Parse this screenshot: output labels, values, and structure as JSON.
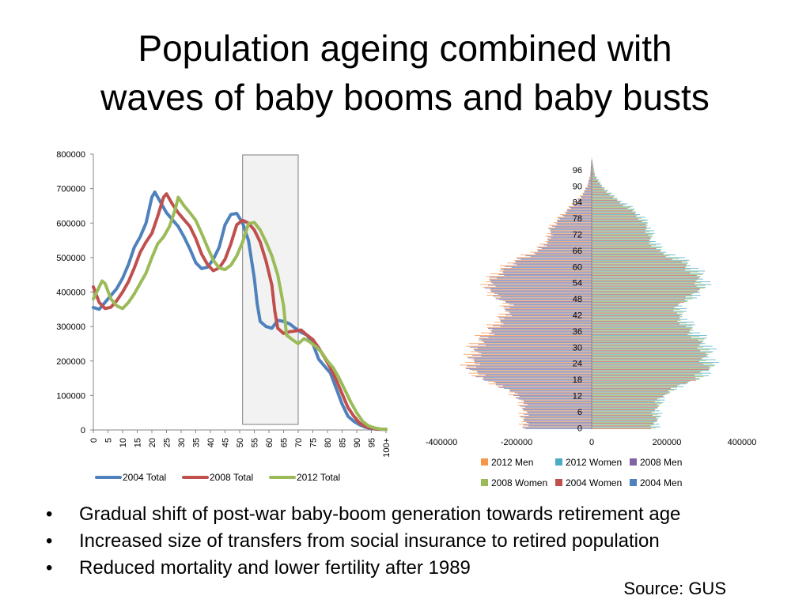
{
  "title": {
    "line1": "Population ageing combined with",
    "line2": "waves of baby booms and baby busts"
  },
  "bullets": [
    "Gradual shift of post-war baby-boom generation towards retirement age",
    "Increased size of transfers from social insurance to retired population",
    "Reduced mortality and lower fertility after 1989"
  ],
  "source": "Source: GUS",
  "chart_data": [
    {
      "type": "line",
      "title": "",
      "xlabel": "",
      "ylabel": "",
      "ylim": [
        0,
        800000
      ],
      "yticks": [
        "0",
        "100000",
        "200000",
        "300000",
        "400000",
        "500000",
        "600000",
        "700000",
        "800000"
      ],
      "xticks": [
        "0",
        "5",
        "10",
        "15",
        "20",
        "25",
        "30",
        "35",
        "40",
        "45",
        "50",
        "55",
        "60",
        "65",
        "70",
        "75",
        "80",
        "85",
        "90",
        "95",
        "100+"
      ],
      "legend": "bottom",
      "highlight_range": [
        51,
        70
      ],
      "series": [
        {
          "name": "2004 Total",
          "color": "#4F81BD",
          "points": [
            [
              0,
              355000
            ],
            [
              2,
              350000
            ],
            [
              4,
              370000
            ],
            [
              6,
              390000
            ],
            [
              8,
              410000
            ],
            [
              10,
              440000
            ],
            [
              12,
              480000
            ],
            [
              14,
              530000
            ],
            [
              16,
              560000
            ],
            [
              18,
              600000
            ],
            [
              20,
              675000
            ],
            [
              21,
              690000
            ],
            [
              23,
              660000
            ],
            [
              25,
              630000
            ],
            [
              27,
              610000
            ],
            [
              29,
              590000
            ],
            [
              31,
              560000
            ],
            [
              33,
              525000
            ],
            [
              35,
              485000
            ],
            [
              37,
              468000
            ],
            [
              39,
              472000
            ],
            [
              41,
              495000
            ],
            [
              43,
              530000
            ],
            [
              45,
              595000
            ],
            [
              47,
              625000
            ],
            [
              49,
              628000
            ],
            [
              51,
              600000
            ],
            [
              53,
              550000
            ],
            [
              55,
              440000
            ],
            [
              56,
              365000
            ],
            [
              57,
              315000
            ],
            [
              59,
              300000
            ],
            [
              61,
              295000
            ],
            [
              63,
              318000
            ],
            [
              65,
              315000
            ],
            [
              67,
              308000
            ],
            [
              69,
              295000
            ],
            [
              71,
              283000
            ],
            [
              73,
              275000
            ],
            [
              75,
              250000
            ],
            [
              77,
              205000
            ],
            [
              79,
              185000
            ],
            [
              81,
              165000
            ],
            [
              83,
              120000
            ],
            [
              85,
              75000
            ],
            [
              87,
              40000
            ],
            [
              89,
              25000
            ],
            [
              91,
              15000
            ],
            [
              93,
              8000
            ],
            [
              95,
              4000
            ],
            [
              97,
              2000
            ],
            [
              100,
              1500
            ]
          ]
        },
        {
          "name": "2008 Total",
          "color": "#C0504D",
          "points": [
            [
              0,
              415000
            ],
            [
              2,
              370000
            ],
            [
              4,
              352000
            ],
            [
              6,
              356000
            ],
            [
              8,
              375000
            ],
            [
              10,
              400000
            ],
            [
              12,
              430000
            ],
            [
              14,
              470000
            ],
            [
              16,
              515000
            ],
            [
              18,
              545000
            ],
            [
              20,
              570000
            ],
            [
              22,
              620000
            ],
            [
              24,
              675000
            ],
            [
              25,
              685000
            ],
            [
              27,
              655000
            ],
            [
              29,
              630000
            ],
            [
              31,
              610000
            ],
            [
              33,
              590000
            ],
            [
              35,
              555000
            ],
            [
              37,
              510000
            ],
            [
              39,
              480000
            ],
            [
              41,
              462000
            ],
            [
              43,
              470000
            ],
            [
              45,
              495000
            ],
            [
              47,
              540000
            ],
            [
              49,
              595000
            ],
            [
              51,
              608000
            ],
            [
              53,
              600000
            ],
            [
              55,
              580000
            ],
            [
              57,
              545000
            ],
            [
              59,
              490000
            ],
            [
              61,
              420000
            ],
            [
              62,
              345000
            ],
            [
              63,
              295000
            ],
            [
              65,
              280000
            ],
            [
              67,
              285000
            ],
            [
              69,
              287000
            ],
            [
              71,
              290000
            ],
            [
              73,
              275000
            ],
            [
              75,
              262000
            ],
            [
              77,
              238000
            ],
            [
              79,
              210000
            ],
            [
              81,
              180000
            ],
            [
              83,
              145000
            ],
            [
              85,
              105000
            ],
            [
              87,
              65000
            ],
            [
              89,
              40000
            ],
            [
              91,
              20000
            ],
            [
              93,
              10000
            ],
            [
              95,
              5000
            ],
            [
              97,
              2500
            ],
            [
              100,
              1500
            ]
          ]
        },
        {
          "name": "2012 Total",
          "color": "#9BBB59",
          "points": [
            [
              0,
              380000
            ],
            [
              2,
              415000
            ],
            [
              3,
              432000
            ],
            [
              4,
              425000
            ],
            [
              6,
              380000
            ],
            [
              8,
              360000
            ],
            [
              10,
              352000
            ],
            [
              12,
              370000
            ],
            [
              14,
              395000
            ],
            [
              16,
              425000
            ],
            [
              18,
              455000
            ],
            [
              20,
              500000
            ],
            [
              22,
              540000
            ],
            [
              24,
              560000
            ],
            [
              26,
              590000
            ],
            [
              28,
              640000
            ],
            [
              29,
              675000
            ],
            [
              31,
              650000
            ],
            [
              33,
              630000
            ],
            [
              35,
              608000
            ],
            [
              37,
              570000
            ],
            [
              39,
              530000
            ],
            [
              41,
              492000
            ],
            [
              43,
              470000
            ],
            [
              45,
              465000
            ],
            [
              47,
              478000
            ],
            [
              49,
              505000
            ],
            [
              51,
              545000
            ],
            [
              53,
              598000
            ],
            [
              55,
              602000
            ],
            [
              57,
              580000
            ],
            [
              59,
              545000
            ],
            [
              61,
              505000
            ],
            [
              63,
              450000
            ],
            [
              65,
              360000
            ],
            [
              66,
              275000
            ],
            [
              68,
              262000
            ],
            [
              70,
              250000
            ],
            [
              72,
              265000
            ],
            [
              74,
              255000
            ],
            [
              76,
              242000
            ],
            [
              78,
              225000
            ],
            [
              80,
              200000
            ],
            [
              82,
              180000
            ],
            [
              84,
              150000
            ],
            [
              86,
              115000
            ],
            [
              88,
              80000
            ],
            [
              90,
              50000
            ],
            [
              92,
              25000
            ],
            [
              94,
              12000
            ],
            [
              96,
              6000
            ],
            [
              98,
              3000
            ],
            [
              100,
              1500
            ]
          ]
        }
      ]
    },
    {
      "type": "bar",
      "orientation": "horizontal",
      "title": "",
      "xlabel": "",
      "ylabel": "",
      "xlim": [
        -400000,
        400000
      ],
      "xticks": [
        "-400000",
        "-200000",
        "0",
        "200000",
        "400000"
      ],
      "yticks": [
        "0",
        "6",
        "12",
        "18",
        "24",
        "30",
        "36",
        "42",
        "48",
        "54",
        "60",
        "66",
        "72",
        "78",
        "84",
        "90",
        "96"
      ],
      "age_range": [
        0,
        100
      ],
      "legend": "bottom",
      "series": [
        {
          "name": "2012 Men",
          "color": "#F79646",
          "side": "left"
        },
        {
          "name": "2012 Women",
          "color": "#4BACC6",
          "side": "right"
        },
        {
          "name": "2008 Men",
          "color": "#8064A2",
          "side": "left"
        },
        {
          "name": "2008 Women",
          "color": "#9BBB59",
          "side": "right"
        },
        {
          "name": "2004 Women",
          "color": "#C0504D",
          "side": "right"
        },
        {
          "name": "2004 Men",
          "color": "#4F81BD",
          "side": "left"
        }
      ],
      "approx_profile": {
        "men": [
          [
            0,
            185000
          ],
          [
            3,
            190000
          ],
          [
            6,
            188000
          ],
          [
            10,
            195000
          ],
          [
            14,
            230000
          ],
          [
            18,
            300000
          ],
          [
            22,
            340000
          ],
          [
            26,
            330000
          ],
          [
            30,
            325000
          ],
          [
            34,
            300000
          ],
          [
            38,
            270000
          ],
          [
            42,
            240000
          ],
          [
            46,
            235000
          ],
          [
            50,
            280000
          ],
          [
            54,
            290000
          ],
          [
            58,
            255000
          ],
          [
            62,
            215000
          ],
          [
            66,
            150000
          ],
          [
            70,
            120000
          ],
          [
            74,
            115000
          ],
          [
            78,
            90000
          ],
          [
            82,
            60000
          ],
          [
            86,
            30000
          ],
          [
            90,
            12000
          ],
          [
            94,
            4000
          ],
          [
            100,
            500
          ]
        ],
        "women": [
          [
            0,
            175000
          ],
          [
            3,
            182000
          ],
          [
            6,
            180000
          ],
          [
            10,
            188000
          ],
          [
            14,
            220000
          ],
          [
            18,
            290000
          ],
          [
            22,
            330000
          ],
          [
            26,
            322000
          ],
          [
            30,
            318000
          ],
          [
            34,
            295000
          ],
          [
            38,
            268000
          ],
          [
            42,
            245000
          ],
          [
            46,
            245000
          ],
          [
            50,
            295000
          ],
          [
            54,
            310000
          ],
          [
            58,
            290000
          ],
          [
            62,
            255000
          ],
          [
            66,
            190000
          ],
          [
            70,
            165000
          ],
          [
            74,
            160000
          ],
          [
            78,
            140000
          ],
          [
            82,
            105000
          ],
          [
            86,
            60000
          ],
          [
            90,
            28000
          ],
          [
            94,
            9000
          ],
          [
            100,
            1000
          ]
        ]
      }
    }
  ]
}
